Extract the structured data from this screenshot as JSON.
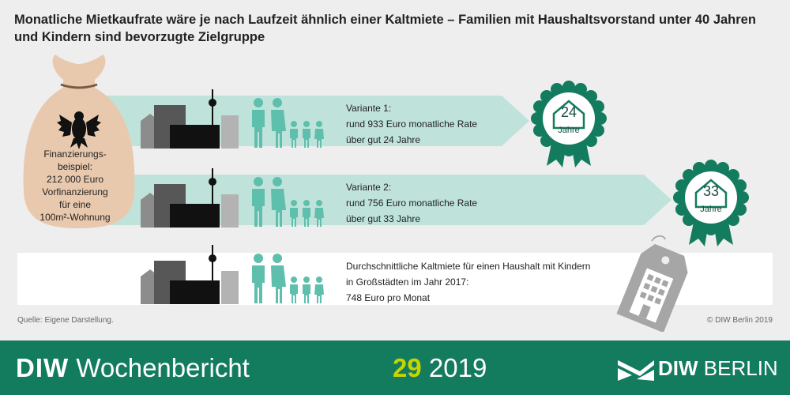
{
  "title": "Monatliche Mietkaufrate wäre je nach Laufzeit ähnlich einer Kaltmiete – Familien mit Haushaltsvorstand unter 40 Jahren und Kindern sind bevorzugte Zielgruppe",
  "bag": {
    "lines": [
      "Finanzierungs-",
      "beispiel:",
      "212 000 Euro",
      "Vorfinanzierung",
      "für eine",
      "100m²-Wohnung"
    ]
  },
  "variants": [
    {
      "lines": [
        "Variante 1:",
        "rund 933 Euro monatliche Rate",
        "über gut 24 Jahre"
      ],
      "badge_number": "24",
      "badge_label": "Jahre"
    },
    {
      "lines": [
        "Variante 2:",
        "rund 756 Euro monatliche Rate",
        "über gut 33 Jahre"
      ],
      "badge_number": "33",
      "badge_label": "Jahre"
    }
  ],
  "rent": {
    "lines": [
      "Durchschnittliche Kaltmiete für einen Haushalt mit Kindern",
      "in Großstädten im Jahr 2017:",
      "748 Euro pro Monat"
    ]
  },
  "source": "Quelle: Eigene Darstellung.",
  "copyright": "© DIW Berlin 2019",
  "footer": {
    "brand_bold": "DIW",
    "brand_rest": " Wochenbericht",
    "issue_number": "29",
    "issue_year": "2019",
    "logo_bold": "DIW",
    "logo_rest": " BERLIN"
  },
  "colors": {
    "teal_light": "#bfe3da",
    "teal_figure": "#5fbfad",
    "teal_dark": "#137b5e",
    "bag": "#e9c9ae",
    "accent": "#c8d400"
  }
}
